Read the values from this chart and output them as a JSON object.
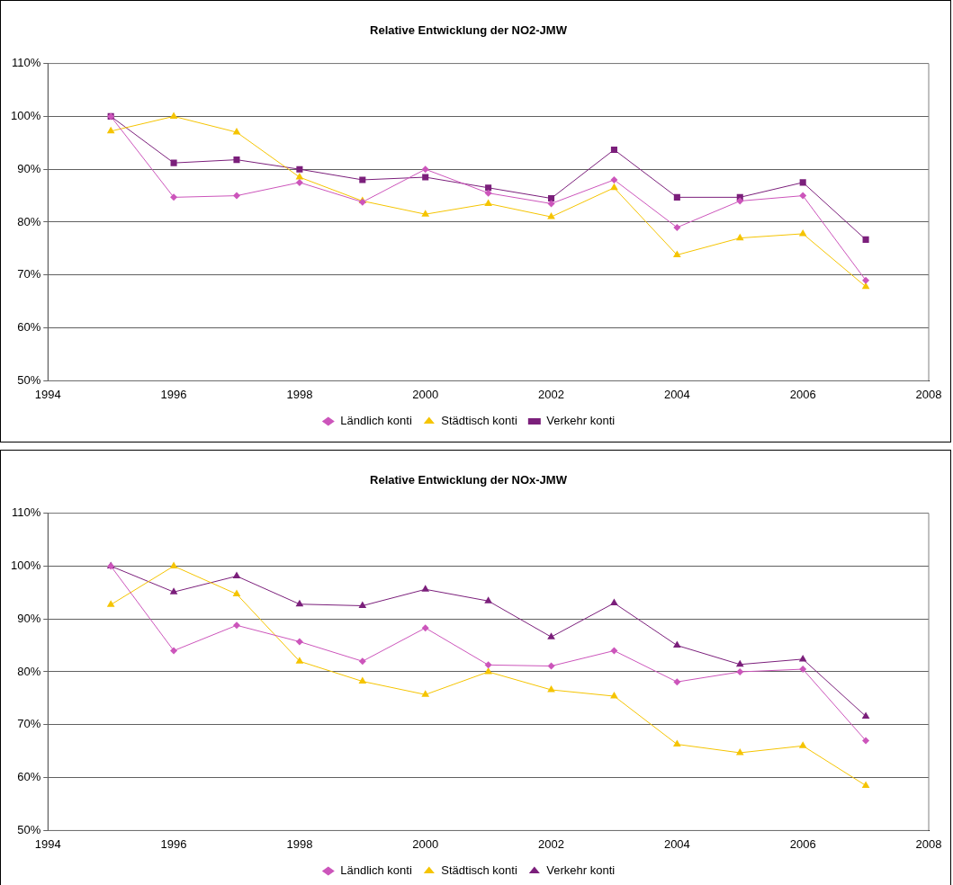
{
  "chart_data": [
    {
      "type": "line",
      "title": "Relative Entwicklung der NO2-JMW",
      "x": [
        1995,
        1996,
        1997,
        1998,
        1999,
        2000,
        2001,
        2002,
        2003,
        2004,
        2005,
        2006,
        2007
      ],
      "series": [
        {
          "name": "Ländlich konti",
          "color": "#cc55bb",
          "marker": "diamond",
          "values": [
            100,
            84.7,
            85,
            87.5,
            83.8,
            90,
            85.5,
            83.5,
            88,
            79,
            84,
            85,
            69
          ]
        },
        {
          "name": "Städtisch konti",
          "color": "#f5c400",
          "marker": "triangle",
          "values": [
            97.2,
            100,
            97,
            88.5,
            84,
            81.5,
            83.5,
            81,
            86.5,
            73.8,
            77,
            77.8,
            67.8
          ]
        },
        {
          "name": "Verkehr konti",
          "color": "#7b1f7b",
          "marker": "square",
          "values": [
            100,
            91.2,
            91.8,
            90,
            88,
            88.5,
            86.5,
            84.5,
            93.7,
            84.7,
            84.7,
            87.5,
            76.7
          ]
        }
      ],
      "xlim": [
        1994,
        2008
      ],
      "xticks": [
        1994,
        1996,
        1998,
        2000,
        2002,
        2004,
        2006,
        2008
      ],
      "ylim": [
        50,
        110
      ],
      "yticks": [
        {
          "value": 50,
          "label": "50%"
        },
        {
          "value": 60,
          "label": "60%"
        },
        {
          "value": 70,
          "label": "70%"
        },
        {
          "value": 80,
          "label": "80%"
        },
        {
          "value": 90,
          "label": "90%"
        },
        {
          "value": 100,
          "label": "100%"
        },
        {
          "value": 110,
          "label": "110%"
        }
      ],
      "grid": "y",
      "legend": "bottom",
      "line_style": "solid"
    },
    {
      "type": "line",
      "title": "Relative Entwicklung der NOx-JMW",
      "x": [
        1995,
        1996,
        1997,
        1998,
        1999,
        2000,
        2001,
        2002,
        2003,
        2004,
        2005,
        2006,
        2007
      ],
      "series": [
        {
          "name": "Ländlich konti",
          "color": "#cc55bb",
          "marker": "diamond",
          "values": [
            100,
            84,
            88.8,
            85.7,
            82,
            88.3,
            81.3,
            81.1,
            84,
            78.1,
            80,
            80.5,
            67
          ]
        },
        {
          "name": "Städtisch konti",
          "color": "#f5c400",
          "marker": "triangle",
          "values": [
            92.7,
            100,
            94.7,
            82,
            78.2,
            75.7,
            80,
            76.6,
            75.4,
            66.3,
            64.7,
            66,
            58.5
          ]
        },
        {
          "name": "Verkehr konti",
          "color": "#7b1f7b",
          "marker": "triangle",
          "values": [
            100,
            95.1,
            98.1,
            92.8,
            92.5,
            95.6,
            93.4,
            86.6,
            93,
            85,
            81.4,
            82.4,
            71.6
          ]
        }
      ],
      "xlim": [
        1994,
        2008
      ],
      "xticks": [
        1994,
        1996,
        1998,
        2000,
        2002,
        2004,
        2006,
        2008
      ],
      "ylim": [
        50,
        110
      ],
      "yticks": [
        {
          "value": 50,
          "label": "50%"
        },
        {
          "value": 60,
          "label": "60%"
        },
        {
          "value": 70,
          "label": "70%"
        },
        {
          "value": 80,
          "label": "80%"
        },
        {
          "value": 90,
          "label": "90%"
        },
        {
          "value": 100,
          "label": "100%"
        },
        {
          "value": 110,
          "label": "110%"
        }
      ],
      "grid": "y",
      "legend": "bottom",
      "line_style": "solid"
    }
  ]
}
